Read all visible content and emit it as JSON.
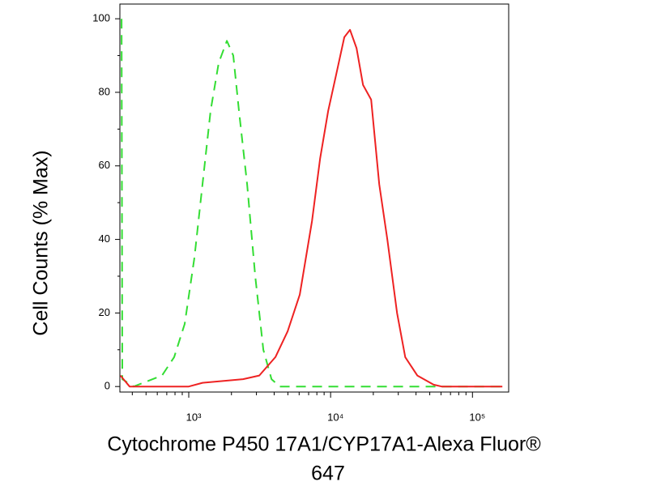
{
  "chart_data": {
    "type": "line",
    "xlabel": "Cytochrome P450 17A1/CYP17A1-Alexa Fluor®",
    "xlabel2": "647",
    "ylabel": "Cell Counts (% Max)",
    "xscale": "log",
    "xlim": [
      327,
      180000
    ],
    "ylim": [
      -1.5,
      104
    ],
    "xticks": [
      {
        "value": 1000,
        "label": "10³"
      },
      {
        "value": 10000,
        "label": "10⁴"
      },
      {
        "value": 100000,
        "label": "10⁵"
      }
    ],
    "yticks": [
      0,
      20,
      40,
      60,
      80,
      100
    ],
    "series": [
      {
        "color": "#33dd33",
        "dashed": true,
        "x": [
          336,
          340,
          409,
          648,
          789,
          936,
          1096,
          1250,
          1426,
          1626,
          1856,
          2061,
          2259,
          2578,
          2942,
          3357,
          3830,
          4369,
          17400,
          162500
        ],
        "values": [
          100,
          2,
          0,
          3,
          8,
          17,
          35,
          55,
          75,
          88,
          94,
          90,
          75,
          55,
          30,
          10,
          2,
          0,
          0,
          0
        ]
      },
      {
        "color": "#ee2222",
        "dashed": false,
        "x": [
          330,
          383,
          1000,
          1250,
          2415,
          3140,
          4083,
          4977,
          6067,
          7396,
          8433,
          9616,
          10964,
          12502,
          13700,
          15240,
          16940,
          19320,
          22030,
          25120,
          29400,
          33570,
          40840,
          53220,
          60670,
          162500
        ],
        "values": [
          3,
          0,
          0,
          1,
          2,
          3,
          8,
          15,
          25,
          45,
          62,
          75,
          85,
          95,
          97,
          92,
          82,
          78,
          55,
          40,
          20,
          8,
          3,
          0.5,
          0,
          0
        ]
      }
    ]
  }
}
